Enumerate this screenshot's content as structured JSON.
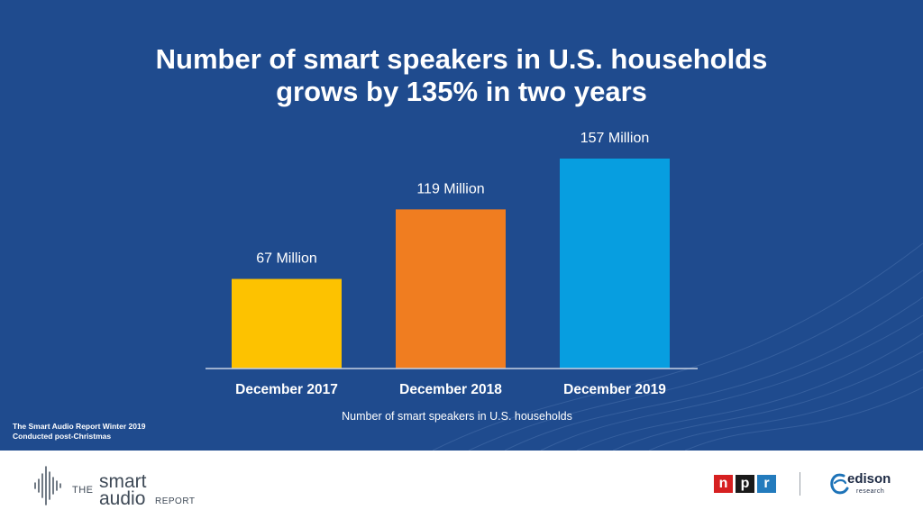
{
  "title_lines": [
    "Number of smart speakers in U.S. households",
    "grows by 135% in two years"
  ],
  "chart_data": {
    "type": "bar",
    "title": "Number of smart speakers in U.S. households grows by 135% in two years",
    "categories": [
      "December 2017",
      "December 2018",
      "December 2019"
    ],
    "values": [
      67,
      119,
      157
    ],
    "data_labels": [
      "67 Million",
      "119 Million",
      "157 Million"
    ],
    "colors": [
      "#fdc200",
      "#f07d20",
      "#079ee0"
    ],
    "xlabel": "Number of smart speakers in U.S. households",
    "ylabel": "",
    "ylim": [
      0,
      157
    ],
    "grid": false,
    "legend": "none"
  },
  "source_lines": [
    "The Smart Audio Report Winter 2019",
    "Conducted post-Christmas"
  ],
  "footer": {
    "smart_audio_logo": {
      "the": "THE",
      "smart": "smart",
      "audio": "audio",
      "report": "REPORT"
    },
    "npr_letters": [
      "n",
      "p",
      "r"
    ],
    "npr_colors": [
      "#d62021",
      "#1a1a1a",
      "#237bbd"
    ],
    "edison_logo": {
      "name": "edison",
      "sub": "research"
    }
  }
}
